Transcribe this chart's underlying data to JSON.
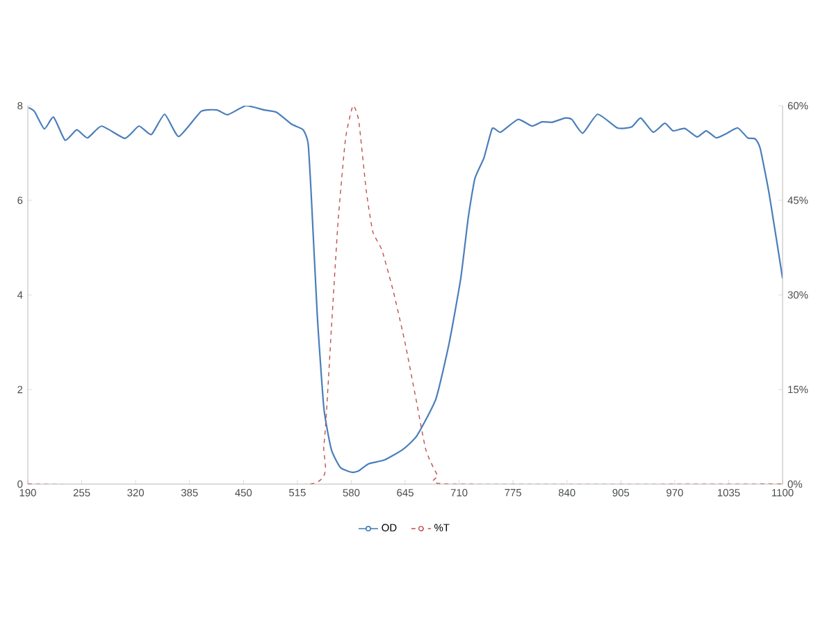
{
  "chart_data": {
    "type": "line",
    "xlim": [
      190,
      1100
    ],
    "xticks": [
      190,
      255,
      320,
      385,
      450,
      515,
      580,
      645,
      710,
      775,
      840,
      905,
      970,
      1035,
      1100
    ],
    "ylim": [
      0,
      8
    ],
    "yticks": [
      0,
      2,
      4,
      6,
      8
    ],
    "y2lim": [
      0,
      60
    ],
    "y2ticks": [
      {
        "value": 0,
        "label": "0%"
      },
      {
        "value": 15,
        "label": "15%"
      },
      {
        "value": 30,
        "label": "30%"
      },
      {
        "value": 45,
        "label": "45%"
      },
      {
        "value": 60,
        "label": "60%"
      }
    ],
    "legend": "bottom",
    "series": [
      {
        "name": "OD",
        "color": "#4a7ebb",
        "line_style": "solid",
        "x": [
          191,
          198,
          210,
          221,
          235,
          249,
          262,
          279,
          307,
          324,
          339,
          355,
          372,
          399,
          418,
          431,
          453,
          475,
          490,
          508,
          522,
          528,
          532,
          539,
          547,
          556,
          567,
          581,
          589,
          601,
          620,
          642,
          659,
          682,
          698,
          712,
          721,
          729,
          740,
          750,
          760,
          781,
          798,
          810,
          822,
          838,
          846,
          859,
          877,
          901,
          918,
          929,
          944,
          958,
          968,
          982,
          997,
          1008,
          1020,
          1032,
          1046,
          1058,
          1067,
          1073,
          1084,
          1100
        ],
        "values": [
          7.96,
          7.88,
          7.51,
          7.76,
          7.27,
          7.49,
          7.32,
          7.57,
          7.31,
          7.57,
          7.39,
          7.82,
          7.35,
          7.88,
          7.91,
          7.81,
          8,
          7.91,
          7.86,
          7.61,
          7.49,
          7.2,
          6.02,
          3.57,
          1.6,
          0.73,
          0.35,
          0.25,
          0.28,
          0.43,
          0.51,
          0.73,
          1.02,
          1.8,
          2.98,
          4.35,
          5.63,
          6.46,
          6.9,
          7.52,
          7.44,
          7.71,
          7.57,
          7.66,
          7.65,
          7.74,
          7.71,
          7.42,
          7.82,
          7.53,
          7.55,
          7.74,
          7.44,
          7.63,
          7.47,
          7.52,
          7.34,
          7.47,
          7.32,
          7.41,
          7.53,
          7.32,
          7.3,
          7.1,
          6.12,
          4.35
        ]
      },
      {
        "name": "%T",
        "color": "#c0504d",
        "line_style": "dashed",
        "axis": "y2",
        "x": [
          190,
          530,
          547,
          556,
          564,
          573,
          582,
          589,
          598,
          606,
          617,
          631,
          645,
          658,
          670,
          684,
          698,
          1100
        ],
        "values": [
          0,
          0,
          6.2,
          24.6,
          41.5,
          54.7,
          60,
          57.6,
          46.6,
          40,
          37.1,
          30.4,
          22.3,
          13.5,
          5.4,
          1.4,
          0,
          0
        ]
      }
    ]
  }
}
